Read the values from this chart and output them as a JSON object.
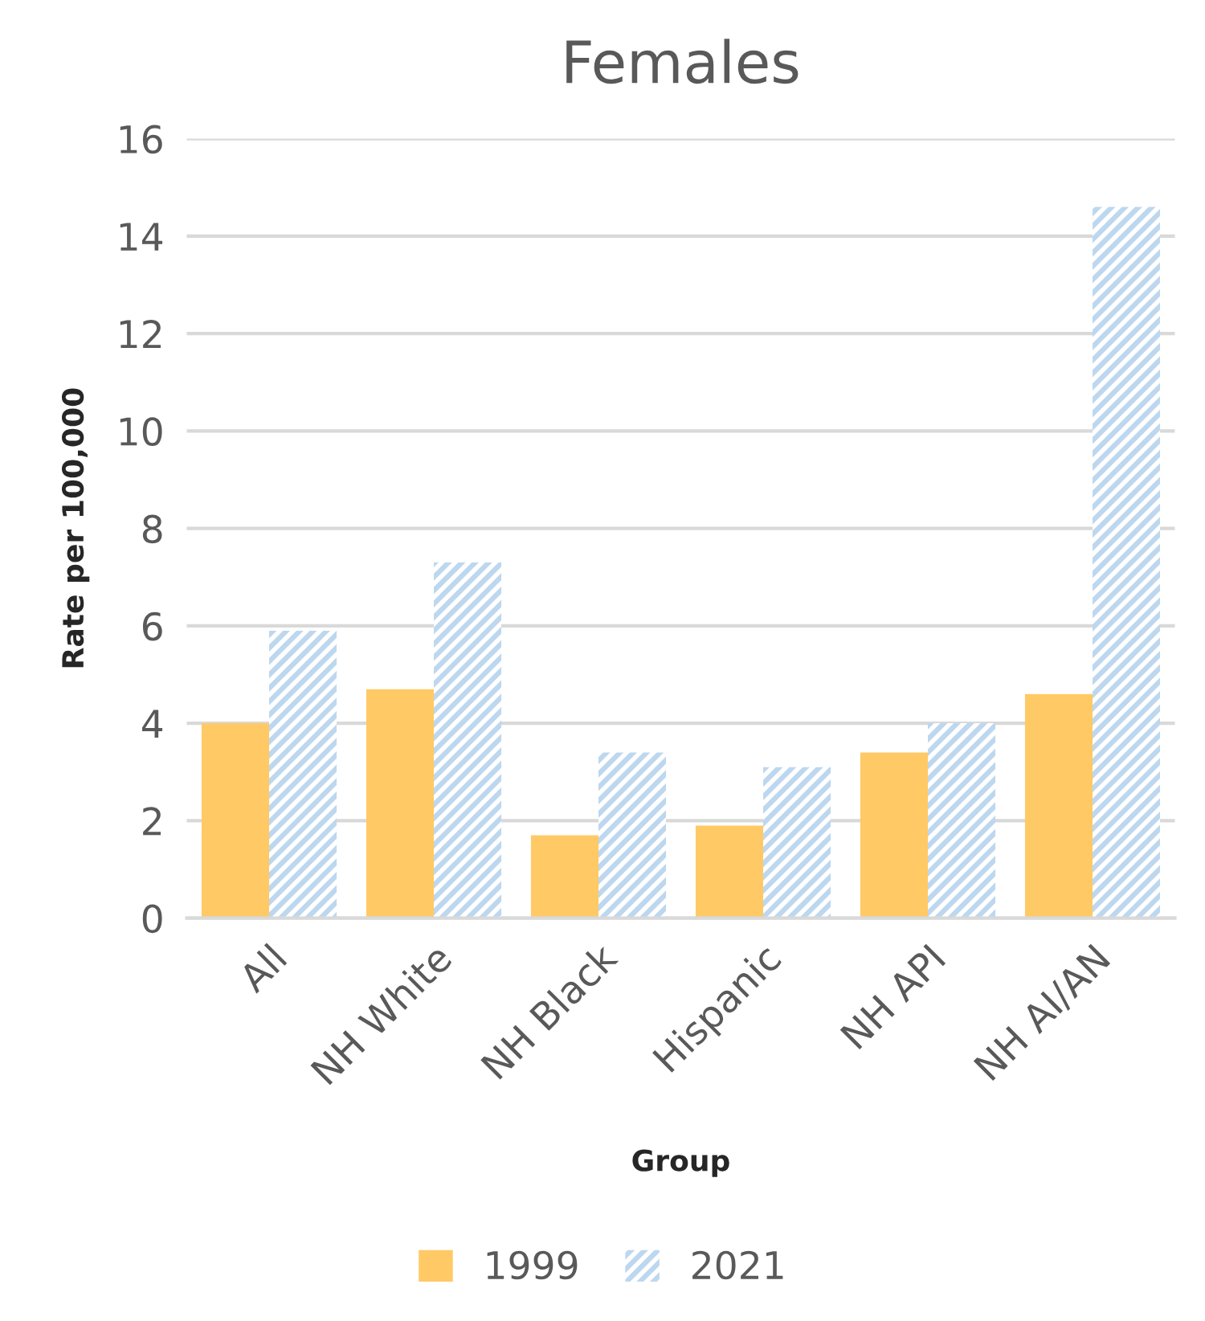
{
  "chart_data": {
    "type": "bar",
    "title": "Females",
    "xlabel": "Group",
    "ylabel": "Rate per 100,000",
    "categories": [
      "All",
      "NH White",
      "NH Black",
      "Hispanic",
      "NH API",
      "NH AI/AN"
    ],
    "series": [
      {
        "name": "1999",
        "color": "#ffc966",
        "values": [
          4.0,
          4.7,
          1.7,
          1.9,
          3.4,
          4.6
        ]
      },
      {
        "name": "2021",
        "color": "#bdd7ee",
        "values": [
          5.9,
          7.3,
          3.4,
          3.1,
          4.0,
          14.6
        ]
      }
    ],
    "ylim": [
      0,
      16
    ],
    "yticks": [
      0,
      2,
      4,
      6,
      8,
      10,
      12,
      14,
      16
    ],
    "grid": "y",
    "legend": "bottom"
  }
}
